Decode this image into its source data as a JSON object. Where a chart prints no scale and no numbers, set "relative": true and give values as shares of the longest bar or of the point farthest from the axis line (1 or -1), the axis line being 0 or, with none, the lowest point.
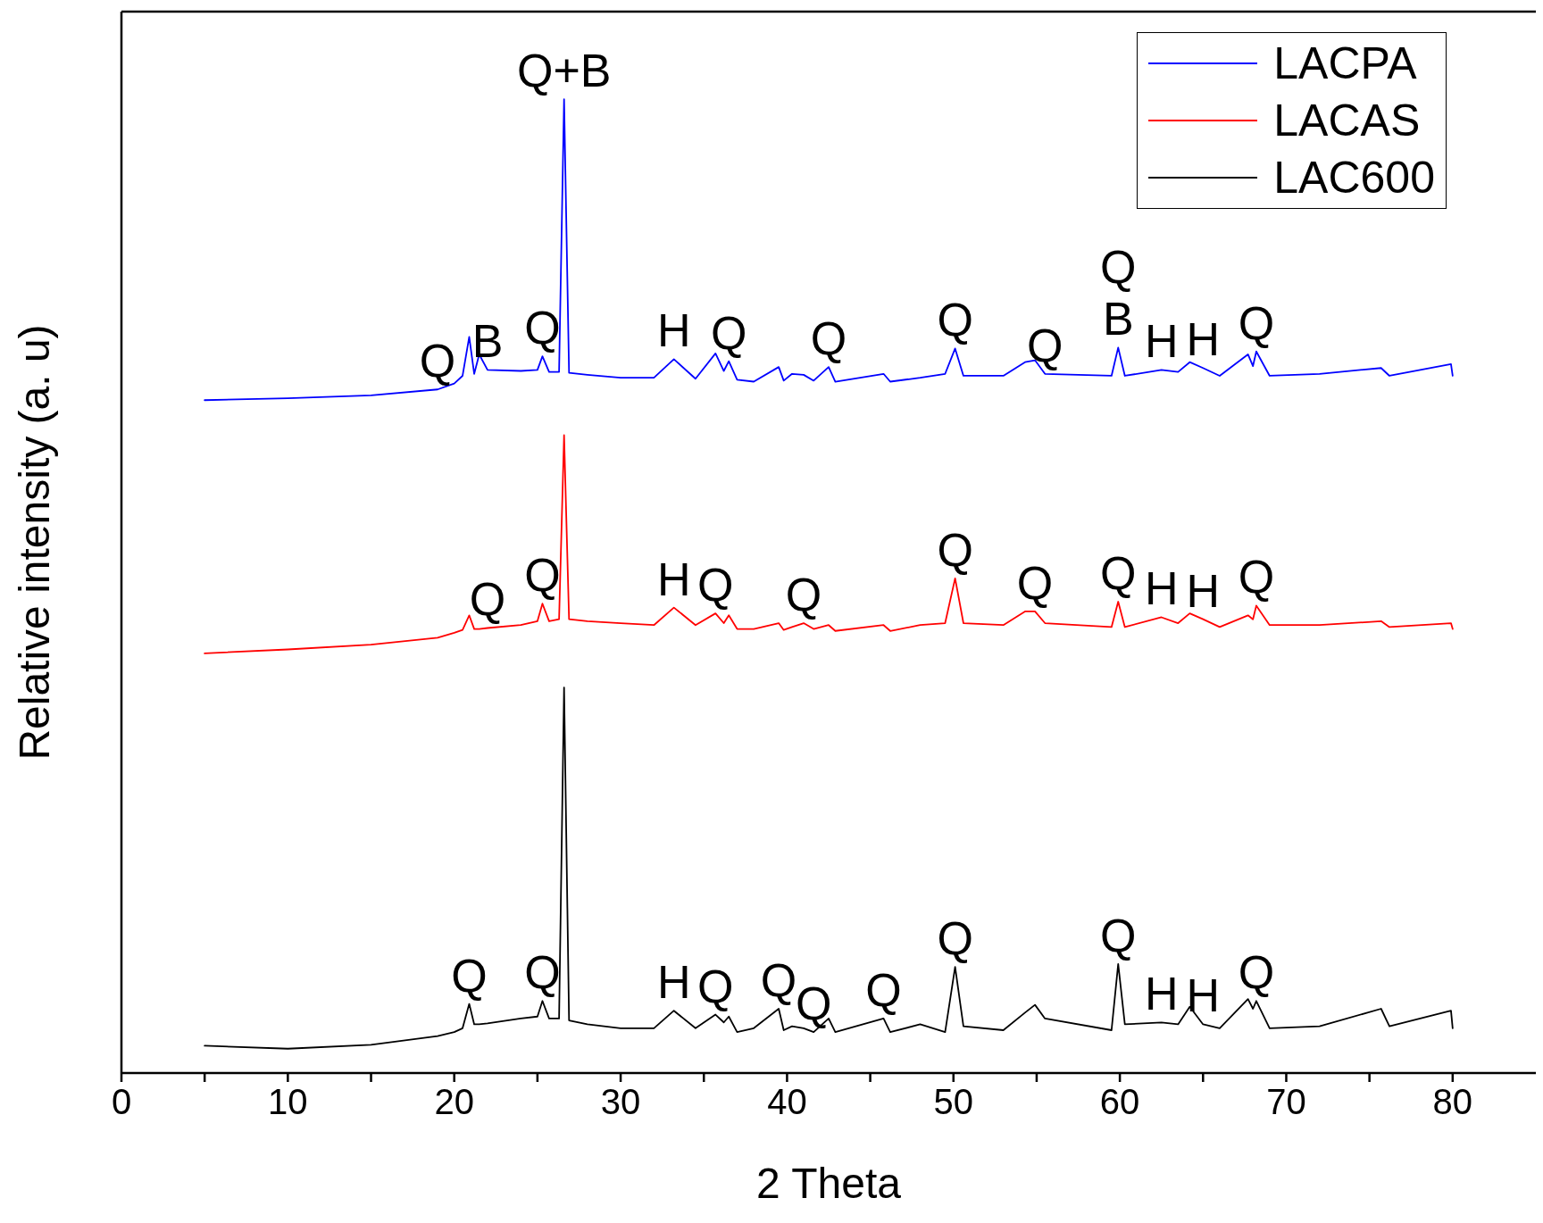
{
  "chart_data": {
    "type": "line",
    "relative": true,
    "xlabel": "2 Theta",
    "ylabel": "Relative intensity (a. u)",
    "xlim": [
      0,
      85
    ],
    "xticks": [
      0,
      {
        "value": 5,
        "label": null
      },
      10,
      {
        "value": 15,
        "label": null
      },
      20,
      {
        "value": 25,
        "label": null
      },
      30,
      {
        "value": 35,
        "label": null
      },
      40,
      {
        "value": 45,
        "label": null
      },
      50,
      {
        "value": 55,
        "label": null
      },
      60,
      {
        "value": 65,
        "label": null
      },
      70,
      {
        "value": 75,
        "label": null
      },
      80
    ],
    "legend": "top right",
    "marker": "none",
    "line_style": "solid",
    "x": [
      5,
      10,
      15,
      19,
      20,
      20.5,
      20.9,
      21.2,
      21.5,
      22,
      24,
      25,
      25.3,
      25.7,
      26.3,
      26.6,
      26.9,
      28,
      30,
      32,
      33.2,
      34.5,
      35.7,
      36.2,
      36.5,
      37,
      38,
      39.5,
      39.8,
      40.3,
      41,
      41.6,
      42.5,
      42.9,
      45.8,
      46.2,
      48,
      49.5,
      50.1,
      50.6,
      53,
      54.3,
      54.9,
      55.5,
      59.5,
      59.9,
      60.3,
      62.5,
      63.5,
      64.2,
      65,
      66,
      67.7,
      68,
      68.2,
      69,
      72,
      75.7,
      76.2,
      79.9,
      80
    ],
    "series": [
      {
        "name": "LACPA",
        "color": "#0000ff",
        "values": [
          0.691,
          0.693,
          0.696,
          0.702,
          0.708,
          0.716,
          0.756,
          0.718,
          0.738,
          0.722,
          0.721,
          0.722,
          0.736,
          0.72,
          0.72,
          1.0,
          0.719,
          0.717,
          0.714,
          0.714,
          0.733,
          0.713,
          0.739,
          0.721,
          0.731,
          0.712,
          0.71,
          0.725,
          0.711,
          0.718,
          0.717,
          0.711,
          0.725,
          0.71,
          0.718,
          0.71,
          0.714,
          0.718,
          0.744,
          0.716,
          0.716,
          0.73,
          0.732,
          0.718,
          0.716,
          0.745,
          0.716,
          0.722,
          0.72,
          0.73,
          0.724,
          0.716,
          0.738,
          0.726,
          0.741,
          0.716,
          0.718,
          0.724,
          0.716,
          0.728,
          0.716
        ]
      },
      {
        "name": "LACAS",
        "color": "#ff0000",
        "values": [
          0.431,
          0.435,
          0.44,
          0.447,
          0.452,
          0.455,
          0.47,
          0.456,
          0.456,
          0.457,
          0.46,
          0.464,
          0.482,
          0.464,
          0.466,
          0.655,
          0.466,
          0.464,
          0.462,
          0.46,
          0.478,
          0.46,
          0.472,
          0.462,
          0.47,
          0.456,
          0.456,
          0.462,
          0.455,
          0.458,
          0.462,
          0.456,
          0.46,
          0.454,
          0.46,
          0.454,
          0.46,
          0.462,
          0.508,
          0.462,
          0.46,
          0.474,
          0.474,
          0.462,
          0.458,
          0.484,
          0.458,
          0.468,
          0.462,
          0.472,
          0.466,
          0.458,
          0.47,
          0.466,
          0.48,
          0.46,
          0.46,
          0.464,
          0.458,
          0.462,
          0.456
        ]
      },
      {
        "name": "LAC600",
        "color": "#000000",
        "values": [
          0.028,
          0.025,
          0.029,
          0.038,
          0.042,
          0.046,
          0.071,
          0.05,
          0.05,
          0.051,
          0.056,
          0.058,
          0.074,
          0.056,
          0.056,
          0.396,
          0.054,
          0.05,
          0.046,
          0.046,
          0.064,
          0.046,
          0.06,
          0.052,
          0.058,
          0.042,
          0.046,
          0.066,
          0.044,
          0.048,
          0.046,
          0.042,
          0.056,
          0.042,
          0.056,
          0.042,
          0.05,
          0.042,
          0.109,
          0.048,
          0.044,
          0.062,
          0.07,
          0.056,
          0.044,
          0.112,
          0.05,
          0.052,
          0.05,
          0.068,
          0.05,
          0.046,
          0.076,
          0.066,
          0.074,
          0.046,
          0.048,
          0.066,
          0.048,
          0.064,
          0.046
        ]
      }
    ],
    "annotations": [
      {
        "text": "Q+B",
        "x": 26.6,
        "y": 1.0
      },
      {
        "text": "Q",
        "x": 19,
        "y": 0.702
      },
      {
        "text": "B",
        "x": 22,
        "y": 0.722
      },
      {
        "text": "Q",
        "x": 25.3,
        "y": 0.736
      },
      {
        "text": "H",
        "x": 33.2,
        "y": 0.733
      },
      {
        "text": "Q",
        "x": 36.5,
        "y": 0.731
      },
      {
        "text": "Q",
        "x": 42.5,
        "y": 0.725
      },
      {
        "text": "Q",
        "x": 50.1,
        "y": 0.744
      },
      {
        "text": "Q",
        "x": 55.5,
        "y": 0.718
      },
      {
        "text": "B",
        "x": 59.9,
        "y": 0.745
      },
      {
        "text": "Q",
        "x": 59.9,
        "y": 0.745
      },
      {
        "text": "H",
        "x": 62.5,
        "y": 0.722
      },
      {
        "text": "H",
        "x": 65,
        "y": 0.724
      },
      {
        "text": "Q",
        "x": 68.2,
        "y": 0.741
      },
      {
        "text": "Q",
        "x": 22,
        "y": 0.457
      },
      {
        "text": "Q",
        "x": 25.3,
        "y": 0.482
      },
      {
        "text": "H",
        "x": 33.2,
        "y": 0.478
      },
      {
        "text": "Q",
        "x": 35.7,
        "y": 0.472
      },
      {
        "text": "Q",
        "x": 41,
        "y": 0.462
      },
      {
        "text": "Q",
        "x": 50.1,
        "y": 0.508
      },
      {
        "text": "Q",
        "x": 54.9,
        "y": 0.474
      },
      {
        "text": "Q",
        "x": 59.9,
        "y": 0.484
      },
      {
        "text": "H",
        "x": 62.5,
        "y": 0.468
      },
      {
        "text": "H",
        "x": 65,
        "y": 0.466
      },
      {
        "text": "Q",
        "x": 68.2,
        "y": 0.48
      },
      {
        "text": "Q",
        "x": 20.9,
        "y": 0.071
      },
      {
        "text": "Q",
        "x": 25.3,
        "y": 0.074
      },
      {
        "text": "H",
        "x": 33.2,
        "y": 0.064
      },
      {
        "text": "Q",
        "x": 35.7,
        "y": 0.06
      },
      {
        "text": "Q",
        "x": 39.5,
        "y": 0.066
      },
      {
        "text": "Q",
        "x": 41.6,
        "y": 0.042
      },
      {
        "text": "Q",
        "x": 45.8,
        "y": 0.056
      },
      {
        "text": "Q",
        "x": 50.1,
        "y": 0.109
      },
      {
        "text": "Q",
        "x": 59.9,
        "y": 0.112
      },
      {
        "text": "H",
        "x": 62.5,
        "y": 0.052
      },
      {
        "text": "H",
        "x": 65,
        "y": 0.05
      },
      {
        "text": "Q",
        "x": 68.2,
        "y": 0.074
      }
    ]
  }
}
